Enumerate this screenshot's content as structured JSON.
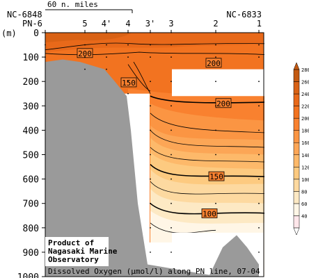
{
  "chart_data": {
    "type": "heatmap",
    "title": "Dissolved Oxygen (µmol/l) along PN line, 07-04",
    "y_axis": {
      "label": "(m)",
      "range": [
        0,
        1000
      ],
      "ticks": [
        0,
        100,
        200,
        300,
        400,
        500,
        600,
        700,
        800,
        900,
        1000
      ]
    },
    "stations": [
      {
        "name": "PN-6",
        "id": "NC-6848"
      },
      {
        "name": "5"
      },
      {
        "name": "4'"
      },
      {
        "name": "4"
      },
      {
        "name": "3'"
      },
      {
        "name": "3"
      },
      {
        "name": "2"
      },
      {
        "name": "1",
        "id": "NC-6833"
      }
    ],
    "scale_bar_label": "60 n. miles",
    "contour_labels": [
      "200",
      "200",
      "150",
      "200",
      "150",
      "100"
    ],
    "colorbar": {
      "ticks": [
        40,
        60,
        80,
        100,
        120,
        140,
        160,
        180,
        200,
        220,
        240,
        260,
        280
      ],
      "colors": [
        "#ffe6ea",
        "#fff6e6",
        "#fde9c4",
        "#fdd9a0",
        "#fdca80",
        "#fdb96a",
        "#fca656",
        "#fb9543",
        "#f9812f",
        "#f27320",
        "#e8691a",
        "#d96215",
        "#c45a12"
      ]
    }
  },
  "credit": {
    "line1": "Product of",
    "line2": "Nagasaki Marine",
    "line3": "Observatory"
  }
}
